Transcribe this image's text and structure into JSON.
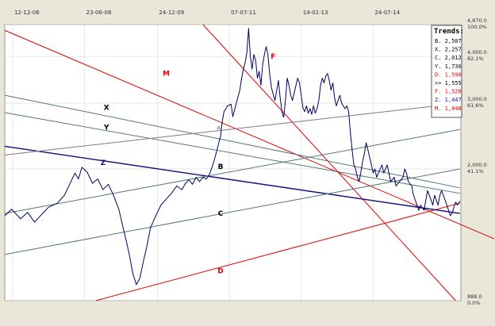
{
  "colors": {
    "background": "#e9e6da",
    "plot_bg": "#ffffff",
    "price_line": "#000066",
    "grid": "#d9d9d9",
    "red": "#e00000",
    "navy": "#10107a",
    "teal": "#557777",
    "purple": "#8f6f8f"
  },
  "chart_data": {
    "type": "line",
    "x_tick_labels": [
      "12-12-06",
      "23-06-08",
      "24-12-09",
      "07-07-11",
      "14-01-13",
      "24-07-14"
    ],
    "y_tick_labels": [
      {
        "price": "4,870.0",
        "pct": "100.0%"
      },
      {
        "price": "4,000.0",
        "pct": "82.1%"
      },
      {
        "price": "3,000.0",
        "pct": "61.6%"
      },
      {
        "price": "2,000.0",
        "pct": "41.1%"
      },
      {
        "price": "888.0",
        "pct": "0.0%"
      }
    ],
    "ylim": [
      888,
      4870
    ],
    "price_series": [
      [
        0.0,
        1500
      ],
      [
        0.4,
        1560
      ],
      [
        0.9,
        1470
      ],
      [
        1.3,
        1530
      ],
      [
        1.7,
        1440
      ],
      [
        2.1,
        1510
      ],
      [
        2.5,
        1580
      ],
      [
        3.0,
        1620
      ],
      [
        3.4,
        1700
      ],
      [
        3.7,
        1820
      ],
      [
        4.0,
        1950
      ],
      [
        4.2,
        1880
      ],
      [
        4.4,
        2020
      ],
      [
        4.7,
        1960
      ],
      [
        5.0,
        1830
      ],
      [
        5.3,
        1880
      ],
      [
        5.6,
        1760
      ],
      [
        5.9,
        1820
      ],
      [
        6.2,
        1700
      ],
      [
        6.5,
        1560
      ],
      [
        6.7,
        1420
      ],
      [
        6.9,
        1300
      ],
      [
        7.1,
        1180
      ],
      [
        7.3,
        1050
      ],
      [
        7.5,
        980
      ],
      [
        7.7,
        1020
      ],
      [
        7.9,
        1130
      ],
      [
        8.1,
        1240
      ],
      [
        8.3,
        1390
      ],
      [
        8.5,
        1460
      ],
      [
        8.7,
        1530
      ],
      [
        8.9,
        1600
      ],
      [
        9.2,
        1660
      ],
      [
        9.5,
        1720
      ],
      [
        9.8,
        1800
      ],
      [
        10.1,
        1760
      ],
      [
        10.3,
        1830
      ],
      [
        10.5,
        1870
      ],
      [
        10.7,
        1820
      ],
      [
        10.9,
        1900
      ],
      [
        11.1,
        1850
      ],
      [
        11.3,
        1900
      ],
      [
        11.5,
        1880
      ],
      [
        11.7,
        1950
      ],
      [
        11.9,
        2080
      ],
      [
        12.1,
        2250
      ],
      [
        12.3,
        2450
      ],
      [
        12.4,
        2680
      ],
      [
        12.5,
        2850
      ],
      [
        12.7,
        2950
      ],
      [
        12.9,
        2980
      ],
      [
        13.0,
        2760
      ],
      [
        13.2,
        3000
      ],
      [
        13.4,
        3250
      ],
      [
        13.5,
        3500
      ],
      [
        13.6,
        3700
      ],
      [
        13.7,
        3850
      ],
      [
        13.8,
        4100
      ],
      [
        13.85,
        4400
      ],
      [
        13.9,
        4760
      ],
      [
        14.0,
        4000
      ],
      [
        14.1,
        3700
      ],
      [
        14.2,
        4050
      ],
      [
        14.3,
        3900
      ],
      [
        14.4,
        3500
      ],
      [
        14.5,
        3650
      ],
      [
        14.6,
        3350
      ],
      [
        14.7,
        3800
      ],
      [
        14.8,
        4050
      ],
      [
        14.9,
        4250
      ],
      [
        15.0,
        4050
      ],
      [
        15.1,
        3600
      ],
      [
        15.2,
        3300
      ],
      [
        15.4,
        3050
      ],
      [
        15.5,
        3250
      ],
      [
        15.6,
        3450
      ],
      [
        15.7,
        3100
      ],
      [
        15.8,
        2850
      ],
      [
        15.9,
        2750
      ],
      [
        16.0,
        3050
      ],
      [
        16.1,
        3500
      ],
      [
        16.2,
        3350
      ],
      [
        16.3,
        3150
      ],
      [
        16.4,
        3050
      ],
      [
        16.5,
        3200
      ],
      [
        16.6,
        3350
      ],
      [
        16.7,
        3500
      ],
      [
        16.8,
        3400
      ],
      [
        16.9,
        3150
      ],
      [
        17.0,
        2900
      ],
      [
        17.1,
        2850
      ],
      [
        17.2,
        2950
      ],
      [
        17.3,
        2820
      ],
      [
        17.4,
        2900
      ],
      [
        17.5,
        2800
      ],
      [
        17.6,
        2950
      ],
      [
        17.7,
        2820
      ],
      [
        17.8,
        2900
      ],
      [
        17.9,
        3050
      ],
      [
        18.0,
        3350
      ],
      [
        18.1,
        3500
      ],
      [
        18.2,
        3400
      ],
      [
        18.3,
        3550
      ],
      [
        18.4,
        3600
      ],
      [
        18.5,
        3450
      ],
      [
        18.6,
        3250
      ],
      [
        18.7,
        3400
      ],
      [
        18.8,
        3100
      ],
      [
        18.9,
        2950
      ],
      [
        19.0,
        3050
      ],
      [
        19.1,
        3150
      ],
      [
        19.2,
        3000
      ],
      [
        19.4,
        2900
      ],
      [
        19.5,
        2950
      ],
      [
        19.6,
        2850
      ],
      [
        19.7,
        2500
      ],
      [
        19.8,
        2250
      ],
      [
        19.9,
        2050
      ],
      [
        20.0,
        2000
      ],
      [
        20.1,
        1900
      ],
      [
        20.2,
        1850
      ],
      [
        20.3,
        1960
      ],
      [
        20.4,
        2100
      ],
      [
        20.5,
        2200
      ],
      [
        20.6,
        2350
      ],
      [
        20.7,
        2250
      ],
      [
        20.8,
        2150
      ],
      [
        20.9,
        2050
      ],
      [
        21.0,
        1950
      ],
      [
        21.1,
        2000
      ],
      [
        21.2,
        1900
      ],
      [
        21.3,
        1950
      ],
      [
        21.5,
        2050
      ],
      [
        21.6,
        1950
      ],
      [
        21.8,
        2050
      ],
      [
        21.9,
        1950
      ],
      [
        22.0,
        1850
      ],
      [
        22.2,
        1900
      ],
      [
        22.3,
        1800
      ],
      [
        22.5,
        1850
      ],
      [
        22.7,
        1900
      ],
      [
        22.8,
        2000
      ],
      [
        22.9,
        1950
      ],
      [
        23.0,
        1850
      ],
      [
        23.2,
        1800
      ],
      [
        23.3,
        1700
      ],
      [
        23.5,
        1600
      ],
      [
        23.6,
        1550
      ],
      [
        23.7,
        1600
      ],
      [
        23.9,
        1550
      ],
      [
        24.0,
        1650
      ],
      [
        24.1,
        1750
      ],
      [
        24.2,
        1700
      ],
      [
        24.3,
        1650
      ],
      [
        24.4,
        1600
      ],
      [
        24.5,
        1700
      ],
      [
        24.6,
        1650
      ],
      [
        24.7,
        1600
      ],
      [
        24.8,
        1700
      ],
      [
        24.9,
        1750
      ],
      [
        25.0,
        1700
      ],
      [
        25.1,
        1650
      ],
      [
        25.2,
        1600
      ],
      [
        25.3,
        1550
      ],
      [
        25.4,
        1500
      ],
      [
        25.5,
        1520
      ],
      [
        25.6,
        1580
      ],
      [
        25.7,
        1630
      ],
      [
        25.8,
        1600
      ],
      [
        25.95,
        1640
      ]
    ],
    "trend_lines": [
      {
        "label": "M",
        "color": "red",
        "points": [
          [
            0.0,
            4700
          ],
          [
            27.9,
            1300
          ]
        ],
        "label_pos": [
          9.2,
          3550
        ]
      },
      {
        "label": "F",
        "color": "red",
        "points": [
          [
            11.3,
            4870
          ],
          [
            25.7,
            888
          ]
        ],
        "label_pos": [
          15.3,
          3950
        ]
      },
      {
        "label": "D",
        "color": "red",
        "points": [
          [
            5.2,
            888
          ],
          [
            25.95,
            1620
          ]
        ],
        "label_pos": [
          12.3,
          1050
        ]
      },
      {
        "label": "Z",
        "color": "navy",
        "points": [
          [
            0.0,
            2300
          ],
          [
            25.95,
            1520
          ]
        ],
        "label_pos": [
          5.6,
          2050
        ]
      },
      {
        "label": "X",
        "color": "teal",
        "points": [
          [
            0.0,
            3150
          ],
          [
            25.95,
            1780
          ]
        ],
        "label_pos": [
          5.8,
          2880
        ]
      },
      {
        "label": "Y",
        "color": "teal",
        "points": [
          [
            0.0,
            2830
          ],
          [
            25.95,
            1720
          ]
        ],
        "label_pos": [
          5.8,
          2550
        ]
      },
      {
        "label": "B",
        "color": "teal",
        "points": [
          [
            0.0,
            1520
          ],
          [
            25.95,
            2550
          ]
        ],
        "label_pos": [
          12.3,
          2000
        ]
      },
      {
        "label": "C",
        "color": "teal",
        "points": [
          [
            0.0,
            1180
          ],
          [
            25.95,
            2000
          ]
        ],
        "label_pos": [
          12.3,
          1500
        ]
      },
      {
        "label": "",
        "color": "purple",
        "points": [
          [
            0.0,
            2180
          ],
          [
            25.95,
            3000
          ]
        ],
        "label_pos": null
      }
    ],
    "small_annotation": {
      "text": "A",
      "pos": [
        12.2,
        2550
      ]
    },
    "legend": {
      "title": "Trends:",
      "entries": [
        {
          "name": "B.",
          "value": "2,507",
          "color": "#000000"
        },
        {
          "name": "X.",
          "value": "2,257",
          "color": "#000000"
        },
        {
          "name": "C.",
          "value": "2,012",
          "color": "#000000"
        },
        {
          "name": "Y.",
          "value": "1,736",
          "color": "#000000"
        },
        {
          "name": "D.",
          "value": "1,590",
          "color": "#e00000"
        },
        {
          "name": ">>",
          "value": "1,555",
          "color": "#000000"
        },
        {
          "name": "F.",
          "value": "1,528",
          "color": "#e00000"
        },
        {
          "name": "Z.",
          "value": "1,447",
          "color": "#1a1aa0"
        },
        {
          "name": "M.",
          "value": "1,048",
          "color": "#e00000"
        }
      ]
    },
    "grid": true,
    "legend_position": "top-right"
  }
}
